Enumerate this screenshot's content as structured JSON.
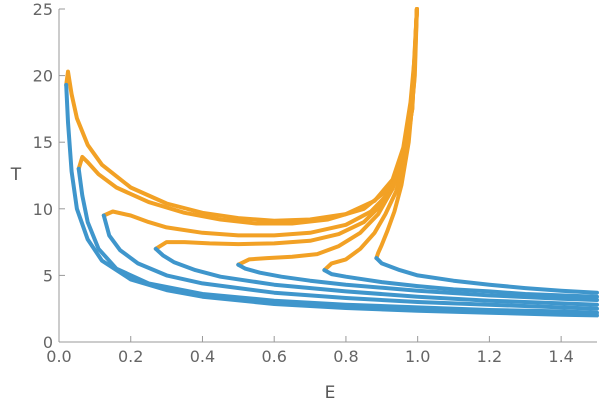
{
  "chart_data": {
    "type": "line",
    "title": "",
    "xlabel": "E",
    "ylabel": "T",
    "xlim": [
      0,
      1.5
    ],
    "ylim": [
      0,
      25
    ],
    "grid": false,
    "legend": "none",
    "x_ticks": [
      "0.0",
      "0.2",
      "0.4",
      "0.6",
      "0.8",
      "1.0",
      "1.2",
      "1.4"
    ],
    "x_tick_values": [
      0,
      0.2,
      0.4,
      0.6,
      0.8,
      1.0,
      1.2,
      1.4
    ],
    "y_ticks": [
      "0",
      "5",
      "10",
      "15",
      "20",
      "25"
    ],
    "y_tick_values": [
      0,
      5,
      10,
      15,
      20,
      25
    ],
    "colors": {
      "blue": "#3f96cc",
      "orange": "#f2a125"
    },
    "series": [
      {
        "color": "orange",
        "points": [
          [
            0.02,
            19.3
          ],
          [
            0.025,
            20.3
          ],
          [
            0.035,
            18.6
          ],
          [
            0.05,
            16.8
          ],
          [
            0.08,
            14.8
          ],
          [
            0.12,
            13.3
          ],
          [
            0.2,
            11.6
          ],
          [
            0.3,
            10.4
          ],
          [
            0.4,
            9.7
          ],
          [
            0.5,
            9.3
          ],
          [
            0.6,
            9.1
          ],
          [
            0.7,
            9.2
          ],
          [
            0.8,
            9.6
          ],
          [
            0.88,
            10.6
          ],
          [
            0.93,
            12.2
          ],
          [
            0.96,
            14.6
          ],
          [
            0.98,
            18.0
          ],
          [
            0.992,
            21.5
          ],
          [
            0.998,
            25.0
          ]
        ]
      },
      {
        "color": "blue",
        "points": [
          [
            0.02,
            19.3
          ],
          [
            0.025,
            16.5
          ],
          [
            0.035,
            12.8
          ],
          [
            0.05,
            10.0
          ],
          [
            0.08,
            7.7
          ],
          [
            0.12,
            6.1
          ],
          [
            0.2,
            4.7
          ],
          [
            0.3,
            3.9
          ],
          [
            0.4,
            3.4
          ],
          [
            0.6,
            2.85
          ],
          [
            0.8,
            2.55
          ],
          [
            1.0,
            2.35
          ],
          [
            1.2,
            2.2
          ],
          [
            1.4,
            2.05
          ],
          [
            1.5,
            2.0
          ]
        ]
      },
      {
        "color": "orange",
        "points": [
          [
            0.055,
            13.0
          ],
          [
            0.065,
            13.9
          ],
          [
            0.08,
            13.5
          ],
          [
            0.11,
            12.6
          ],
          [
            0.16,
            11.6
          ],
          [
            0.25,
            10.5
          ],
          [
            0.35,
            9.7
          ],
          [
            0.45,
            9.2
          ],
          [
            0.55,
            8.9
          ],
          [
            0.65,
            8.9
          ],
          [
            0.75,
            9.2
          ],
          [
            0.85,
            10.0
          ],
          [
            0.92,
            11.5
          ],
          [
            0.96,
            13.8
          ],
          [
            0.985,
            17.5
          ],
          [
            0.998,
            25.0
          ]
        ]
      },
      {
        "color": "blue",
        "points": [
          [
            0.055,
            13.0
          ],
          [
            0.065,
            11.0
          ],
          [
            0.08,
            9.0
          ],
          [
            0.11,
            7.0
          ],
          [
            0.16,
            5.5
          ],
          [
            0.25,
            4.4
          ],
          [
            0.4,
            3.6
          ],
          [
            0.6,
            3.1
          ],
          [
            0.8,
            2.8
          ],
          [
            1.0,
            2.6
          ],
          [
            1.2,
            2.4
          ],
          [
            1.4,
            2.3
          ],
          [
            1.5,
            2.2
          ]
        ]
      },
      {
        "color": "orange",
        "points": [
          [
            0.125,
            9.5
          ],
          [
            0.15,
            9.8
          ],
          [
            0.2,
            9.5
          ],
          [
            0.25,
            9.0
          ],
          [
            0.3,
            8.6
          ],
          [
            0.4,
            8.2
          ],
          [
            0.5,
            8.0
          ],
          [
            0.6,
            8.0
          ],
          [
            0.7,
            8.2
          ],
          [
            0.8,
            8.8
          ],
          [
            0.87,
            9.8
          ],
          [
            0.92,
            11.2
          ],
          [
            0.96,
            13.8
          ],
          [
            0.985,
            17.5
          ],
          [
            0.998,
            25.0
          ]
        ]
      },
      {
        "color": "blue",
        "points": [
          [
            0.125,
            9.5
          ],
          [
            0.14,
            8.0
          ],
          [
            0.17,
            6.9
          ],
          [
            0.22,
            5.9
          ],
          [
            0.3,
            5.0
          ],
          [
            0.4,
            4.4
          ],
          [
            0.6,
            3.7
          ],
          [
            0.8,
            3.3
          ],
          [
            1.0,
            3.0
          ],
          [
            1.2,
            2.8
          ],
          [
            1.4,
            2.6
          ],
          [
            1.5,
            2.5
          ]
        ]
      },
      {
        "color": "orange",
        "points": [
          [
            0.27,
            7.0
          ],
          [
            0.3,
            7.5
          ],
          [
            0.35,
            7.5
          ],
          [
            0.42,
            7.4
          ],
          [
            0.5,
            7.35
          ],
          [
            0.6,
            7.4
          ],
          [
            0.7,
            7.6
          ],
          [
            0.78,
            8.1
          ],
          [
            0.85,
            9.0
          ],
          [
            0.91,
            10.6
          ],
          [
            0.95,
            13.0
          ],
          [
            0.98,
            16.5
          ],
          [
            0.992,
            20.0
          ],
          [
            0.998,
            25.0
          ]
        ]
      },
      {
        "color": "blue",
        "points": [
          [
            0.27,
            7.0
          ],
          [
            0.29,
            6.5
          ],
          [
            0.32,
            6.0
          ],
          [
            0.38,
            5.4
          ],
          [
            0.45,
            4.9
          ],
          [
            0.6,
            4.3
          ],
          [
            0.8,
            3.8
          ],
          [
            1.0,
            3.4
          ],
          [
            1.2,
            3.1
          ],
          [
            1.4,
            2.9
          ],
          [
            1.5,
            2.8
          ]
        ]
      },
      {
        "color": "orange",
        "points": [
          [
            0.5,
            5.8
          ],
          [
            0.53,
            6.2
          ],
          [
            0.58,
            6.3
          ],
          [
            0.65,
            6.4
          ],
          [
            0.72,
            6.6
          ],
          [
            0.78,
            7.2
          ],
          [
            0.84,
            8.2
          ],
          [
            0.89,
            9.6
          ],
          [
            0.93,
            11.5
          ],
          [
            0.965,
            14.5
          ],
          [
            0.985,
            18.5
          ],
          [
            0.998,
            25.0
          ]
        ]
      },
      {
        "color": "blue",
        "points": [
          [
            0.5,
            5.8
          ],
          [
            0.52,
            5.5
          ],
          [
            0.56,
            5.2
          ],
          [
            0.62,
            4.9
          ],
          [
            0.7,
            4.6
          ],
          [
            0.8,
            4.3
          ],
          [
            1.0,
            3.85
          ],
          [
            1.2,
            3.5
          ],
          [
            1.4,
            3.25
          ],
          [
            1.5,
            3.15
          ]
        ]
      },
      {
        "color": "orange",
        "points": [
          [
            0.74,
            5.4
          ],
          [
            0.76,
            5.9
          ],
          [
            0.8,
            6.2
          ],
          [
            0.84,
            7.0
          ],
          [
            0.88,
            8.2
          ],
          [
            0.91,
            9.6
          ],
          [
            0.94,
            11.3
          ],
          [
            0.965,
            14.0
          ],
          [
            0.985,
            18.0
          ],
          [
            0.998,
            25.0
          ]
        ]
      },
      {
        "color": "blue",
        "points": [
          [
            0.74,
            5.4
          ],
          [
            0.76,
            5.1
          ],
          [
            0.8,
            4.9
          ],
          [
            0.9,
            4.5
          ],
          [
            1.0,
            4.2
          ],
          [
            1.1,
            3.95
          ],
          [
            1.2,
            3.8
          ],
          [
            1.3,
            3.6
          ],
          [
            1.4,
            3.5
          ],
          [
            1.5,
            3.4
          ]
        ]
      },
      {
        "color": "orange",
        "points": [
          [
            0.885,
            6.3
          ],
          [
            0.89,
            6.7
          ],
          [
            0.9,
            7.3
          ],
          [
            0.915,
            8.3
          ],
          [
            0.935,
            9.8
          ],
          [
            0.955,
            11.8
          ],
          [
            0.975,
            15.0
          ],
          [
            0.99,
            19.5
          ],
          [
            0.998,
            25.0
          ]
        ]
      },
      {
        "color": "blue",
        "points": [
          [
            0.885,
            6.3
          ],
          [
            0.9,
            5.9
          ],
          [
            0.95,
            5.4
          ],
          [
            1.0,
            5.0
          ],
          [
            1.1,
            4.6
          ],
          [
            1.2,
            4.3
          ],
          [
            1.3,
            4.05
          ],
          [
            1.4,
            3.85
          ],
          [
            1.5,
            3.7
          ]
        ]
      }
    ]
  }
}
